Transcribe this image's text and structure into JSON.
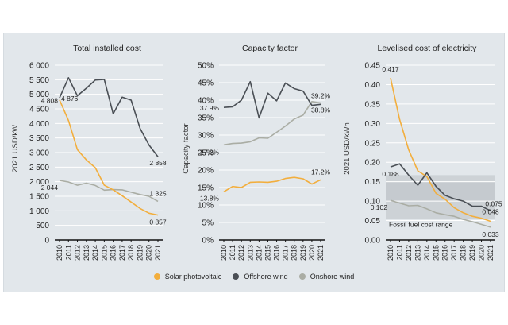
{
  "colors": {
    "solar": "#f2ae3d",
    "offshore": "#4a4f55",
    "onshore": "#aaada4",
    "panel_bg": "#e2e7eb",
    "grid": "#ffffff",
    "fossil_band_outer": "#cdd2d6",
    "fossil_band_inner": "#c5cacf"
  },
  "legend": [
    {
      "key": "solar",
      "label": "Solar photovoltaic"
    },
    {
      "key": "offshore",
      "label": "Offshore wind"
    },
    {
      "key": "onshore",
      "label": "Onshore wind"
    }
  ],
  "chart_data": [
    {
      "type": "line",
      "title": "Total installed cost",
      "xlabel": "",
      "ylabel": "2021 USD/kW",
      "x": [
        2010,
        2011,
        2012,
        2013,
        2014,
        2015,
        2016,
        2017,
        2018,
        2019,
        2020,
        2021
      ],
      "ylim": [
        0,
        6000
      ],
      "yticks": [
        0,
        500,
        1000,
        1500,
        2000,
        2500,
        3000,
        3500,
        4000,
        4500,
        5000,
        5500,
        6000
      ],
      "ytick_labels": [
        "0",
        "500",
        "1 000",
        "1 500",
        "2 000",
        "2 500",
        "3 000",
        "3 500",
        "4 000",
        "4 500",
        "5 000",
        "5 500",
        "6 000"
      ],
      "grid": true,
      "series": [
        {
          "name": "Solar photovoltaic",
          "key": "solar",
          "values": [
            4808,
            4100,
            3100,
            2750,
            2480,
            1880,
            1720,
            1520,
            1300,
            1080,
            920,
            857
          ]
        },
        {
          "name": "Offshore wind",
          "key": "offshore",
          "values": [
            4876,
            5570,
            4950,
            5210,
            5490,
            5510,
            4330,
            4900,
            4800,
            3830,
            3260,
            2858
          ]
        },
        {
          "name": "Onshore wind",
          "key": "onshore",
          "values": [
            2044,
            1990,
            1880,
            1950,
            1870,
            1710,
            1730,
            1720,
            1640,
            1560,
            1500,
            1325
          ]
        }
      ],
      "annotations": [
        {
          "text": "4 808",
          "series": "solar",
          "x": 2010
        },
        {
          "text": "4 876",
          "series": "offshore",
          "x": 2010
        },
        {
          "text": "2 044",
          "series": "onshore",
          "x": 2010
        },
        {
          "text": "2 858",
          "series": "offshore",
          "x": 2021
        },
        {
          "text": "1 325",
          "series": "onshore",
          "x": 2021
        },
        {
          "text": "0 857",
          "series": "solar",
          "x": 2021
        }
      ]
    },
    {
      "type": "line",
      "title": "Capacity factor",
      "xlabel": "",
      "ylabel": "Capacity factor",
      "x": [
        2010,
        2011,
        2012,
        2013,
        2014,
        2015,
        2016,
        2017,
        2018,
        2019,
        2020,
        2021
      ],
      "ylim": [
        0,
        50
      ],
      "yticks": [
        0,
        5,
        10,
        15,
        20,
        25,
        30,
        35,
        40,
        45,
        50
      ],
      "ytick_labels": [
        "0%",
        "5%",
        "10%",
        "15%",
        "20%",
        "25%",
        "30%",
        "35%",
        "40%",
        "45%",
        "50%"
      ],
      "grid": true,
      "series": [
        {
          "name": "Solar photovoltaic",
          "key": "solar",
          "values": [
            13.8,
            15.3,
            15.0,
            16.5,
            16.6,
            16.5,
            16.8,
            17.6,
            17.9,
            17.5,
            16.0,
            17.2
          ]
        },
        {
          "name": "Offshore wind",
          "key": "offshore",
          "values": [
            37.9,
            38.1,
            40.0,
            45.3,
            34.9,
            42.0,
            39.8,
            44.9,
            43.3,
            42.6,
            38.5,
            38.8
          ]
        },
        {
          "name": "Onshore wind",
          "key": "onshore",
          "values": [
            27.2,
            27.6,
            27.7,
            28.1,
            29.2,
            29.1,
            30.8,
            32.6,
            34.6,
            35.7,
            39.6,
            39.2
          ]
        }
      ],
      "annotations": [
        {
          "text": "37.9%",
          "series": "offshore",
          "x": 2010
        },
        {
          "text": "27.2%",
          "series": "onshore",
          "x": 2010
        },
        {
          "text": "13.8%",
          "series": "solar",
          "x": 2010
        },
        {
          "text": "39.2%",
          "series": "onshore",
          "x": 2021
        },
        {
          "text": "38.8%",
          "series": "offshore",
          "x": 2021
        },
        {
          "text": "17.2%",
          "series": "solar",
          "x": 2021
        }
      ]
    },
    {
      "type": "line",
      "title": "Levelised cost of electricity",
      "xlabel": "",
      "ylabel": "2021 USD/kWh",
      "x": [
        2010,
        2011,
        2012,
        2013,
        2014,
        2015,
        2016,
        2017,
        2018,
        2019,
        2020,
        2021
      ],
      "ylim": [
        0,
        0.45
      ],
      "yticks": [
        0,
        0.05,
        0.1,
        0.15,
        0.2,
        0.25,
        0.3,
        0.35,
        0.4,
        0.45
      ],
      "ytick_labels": [
        "0.00",
        "0.05",
        "0.10",
        "0.15",
        "0.20",
        "0.25",
        "0.30",
        "0.35",
        "0.40",
        "0.45"
      ],
      "grid": true,
      "bands": [
        {
          "label": "Fossil fuel cost range",
          "range": [
            0.054,
            0.167
          ]
        },
        {
          "label": "",
          "range": [
            0.1,
            0.148
          ]
        }
      ],
      "series": [
        {
          "name": "Solar photovoltaic",
          "key": "solar",
          "values": [
            0.417,
            0.31,
            0.232,
            0.178,
            0.163,
            0.12,
            0.105,
            0.083,
            0.07,
            0.061,
            0.056,
            0.048
          ]
        },
        {
          "name": "Offshore wind",
          "key": "offshore",
          "values": [
            0.188,
            0.196,
            0.167,
            0.141,
            0.173,
            0.138,
            0.115,
            0.106,
            0.1,
            0.087,
            0.087,
            0.075
          ]
        },
        {
          "name": "Onshore wind",
          "key": "onshore",
          "values": [
            0.102,
            0.095,
            0.088,
            0.089,
            0.08,
            0.07,
            0.065,
            0.061,
            0.053,
            0.047,
            0.04,
            0.033
          ]
        }
      ],
      "annotations": [
        {
          "text": "0.417",
          "series": "solar",
          "x": 2010
        },
        {
          "text": "0.188",
          "series": "offshore",
          "x": 2010
        },
        {
          "text": "0.102",
          "series": "onshore",
          "x": 2010
        },
        {
          "text": "0.075",
          "series": "offshore",
          "x": 2021
        },
        {
          "text": "0.048",
          "series": "solar",
          "x": 2021
        },
        {
          "text": "0.033",
          "series": "onshore",
          "x": 2021
        },
        {
          "text": "Fossil fuel cost range",
          "series": "band",
          "x": 2010
        }
      ]
    }
  ]
}
